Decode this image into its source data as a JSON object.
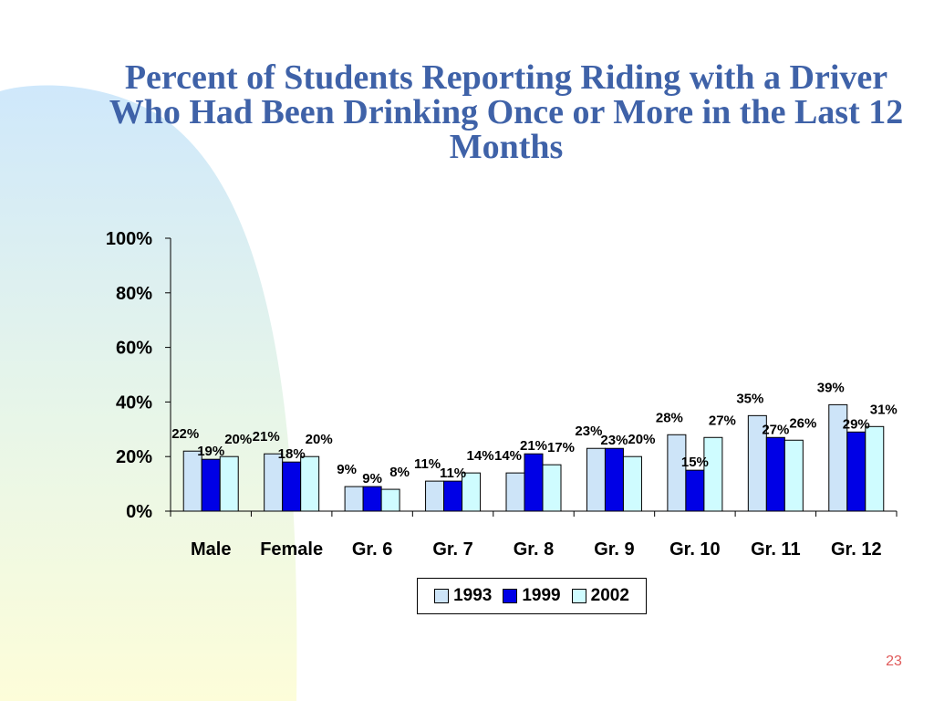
{
  "slide": {
    "title": "Percent of Students Reporting Riding with a Driver Who Had Been Drinking Once or More in the Last 12 Months",
    "page_number": "23"
  },
  "colors": {
    "title": "#3f62a8",
    "series_1993": "#cde4f8",
    "series_1999": "#0000e6",
    "series_2002": "#cffcff",
    "page_number": "#e05a5a"
  },
  "chart_data": {
    "type": "bar",
    "title": "",
    "xlabel": "",
    "ylabel": "",
    "categories": [
      "Male",
      "Female",
      "Gr. 6",
      "Gr. 7",
      "Gr. 8",
      "Gr. 9",
      "Gr. 10",
      "Gr. 11",
      "Gr. 12"
    ],
    "series": [
      {
        "name": "1993",
        "values": [
          22,
          21,
          9,
          11,
          14,
          23,
          28,
          35,
          39
        ]
      },
      {
        "name": "1999",
        "values": [
          19,
          18,
          9,
          11,
          21,
          23,
          15,
          27,
          29
        ]
      },
      {
        "name": "2002",
        "values": [
          20,
          20,
          8,
          14,
          17,
          20,
          27,
          26,
          31
        ]
      }
    ],
    "ylim": [
      0,
      100
    ],
    "yticks": [
      "0%",
      "20%",
      "40%",
      "60%",
      "80%",
      "100%"
    ],
    "ytick_values": [
      0,
      20,
      40,
      60,
      80,
      100
    ],
    "value_suffix": "%",
    "grid": false,
    "legend_position": "bottom"
  }
}
